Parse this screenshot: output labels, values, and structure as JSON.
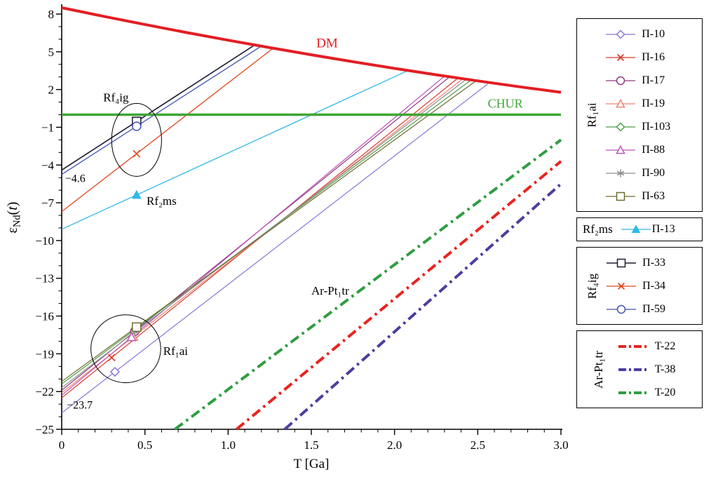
{
  "chart_data": {
    "type": "line",
    "xlabel": "T [Ga]",
    "ylabel": "εNd(t)",
    "ylabel_parts": [
      {
        "t": "ε"
      },
      {
        "t": "Nd",
        "sub": true
      },
      {
        "t": "("
      },
      {
        "t": "t",
        "italic": true
      },
      {
        "t": ")"
      }
    ],
    "xlim": [
      0,
      3.0
    ],
    "ylim": [
      -25,
      8
    ],
    "x_ticks": {
      "values": [
        0,
        0.5,
        1.0,
        1.5,
        2.0,
        2.5,
        3.0
      ],
      "labels": [
        "0",
        "0.5",
        "1.0",
        "1.5",
        "2.0",
        "2.5",
        "3.0"
      ],
      "minor_step": 0.1
    },
    "y_ticks": {
      "values": [
        8,
        5,
        2,
        -1,
        -4,
        -7,
        -10,
        -13,
        -16,
        -19,
        -22,
        -25
      ],
      "labels": [
        "8",
        "5",
        "2",
        "−1",
        "−4",
        "−7",
        "−10",
        "−13",
        "−16",
        "−19",
        "−22",
        "−25"
      ],
      "minor_step": 1
    },
    "reference_lines": [
      {
        "name": "DM",
        "color": "#e31e24",
        "width": 4,
        "points": [
          [
            0,
            8.5
          ],
          [
            0.25,
            7.82
          ],
          [
            0.5,
            7.17
          ],
          [
            0.75,
            6.53
          ],
          [
            1.0,
            5.92
          ],
          [
            1.25,
            5.33
          ],
          [
            1.5,
            4.76
          ],
          [
            1.75,
            4.21
          ],
          [
            2.0,
            3.68
          ],
          [
            2.25,
            3.17
          ],
          [
            2.5,
            2.69
          ],
          [
            2.75,
            2.22
          ],
          [
            3.0,
            1.78
          ]
        ]
      },
      {
        "name": "CHUR",
        "color": "#3fa535",
        "width": 3.5,
        "points": [
          [
            0,
            0
          ],
          [
            3.0,
            0
          ]
        ]
      }
    ],
    "series": [
      {
        "group": "Rf₁ai",
        "name": "П-10",
        "color": "#8577d6",
        "marker": "diamond",
        "width": 1.2,
        "points": [
          [
            0,
            -23.7
          ],
          [
            2.57,
            2.55
          ]
        ],
        "marker_at": [
          0.32,
          -20.43
        ]
      },
      {
        "group": "Rf₁ai",
        "name": "П-16",
        "color": "#d93a2b",
        "marker": "x",
        "width": 1.2,
        "points": [
          [
            0,
            -22.5
          ],
          [
            2.38,
            2.9
          ]
        ],
        "marker_at": [
          0.3,
          -19.3
        ]
      },
      {
        "group": "Rf₁ai",
        "name": "П-17",
        "color": "#8d3a80",
        "marker": "circle",
        "width": 1.2,
        "points": [
          [
            0,
            -21.9
          ],
          [
            2.33,
            3.0
          ]
        ],
        "marker_at": [
          0.44,
          -17.2
        ]
      },
      {
        "group": "Rf₁ai",
        "name": "П-19",
        "color": "#ef8373",
        "marker": "triangle",
        "width": 1.2,
        "points": [
          [
            0,
            -22.1
          ],
          [
            2.41,
            2.85
          ]
        ],
        "marker_at": [
          0.43,
          -17.65
        ]
      },
      {
        "group": "Rf₁ai",
        "name": "П-103",
        "color": "#4e9e4a",
        "marker": "diamond",
        "width": 1.2,
        "points": [
          [
            0,
            -21.4
          ],
          [
            2.46,
            2.76
          ]
        ],
        "marker_at": [
          0.45,
          -16.98
        ]
      },
      {
        "group": "Rf₁ai",
        "name": "П-88",
        "color": "#bc53bc",
        "marker": "triangle",
        "width": 1.2,
        "points": [
          [
            0,
            -22.3
          ],
          [
            2.3,
            3.06
          ]
        ],
        "marker_at": [
          0.42,
          -17.67
        ]
      },
      {
        "group": "Rf₁ai",
        "name": "П-90",
        "color": "#8c8c8c",
        "marker": "asterisk",
        "width": 1.2,
        "points": [
          [
            0,
            -21.7
          ],
          [
            2.43,
            2.8
          ]
        ],
        "marker_at": [
          0.44,
          -17.26
        ]
      },
      {
        "group": "Rf₁ai",
        "name": "П-63",
        "color": "#6f6b2f",
        "marker": "square",
        "width": 1.2,
        "points": [
          [
            0,
            -21.2
          ],
          [
            2.49,
            2.7
          ]
        ],
        "marker_at": [
          0.45,
          -16.88
        ]
      },
      {
        "group": "Rf₂ms",
        "name": "П-13",
        "color": "#30b8e8",
        "marker": "triangle-filled",
        "width": 1.3,
        "points": [
          [
            0,
            -9.1
          ],
          [
            2.08,
            3.5
          ]
        ],
        "marker_at": [
          0.45,
          -6.37
        ]
      },
      {
        "group": "Rf₄ig",
        "name": "П-33",
        "color": "#1c1c34",
        "marker": "square",
        "width": 1.6,
        "points": [
          [
            0,
            -4.4
          ],
          [
            1.16,
            5.54
          ]
        ],
        "marker_at": [
          0.45,
          -0.54
        ]
      },
      {
        "group": "Rf₄ig",
        "name": "П-34",
        "color": "#e0471e",
        "marker": "x",
        "width": 1.3,
        "points": [
          [
            0,
            -7.7
          ],
          [
            1.27,
            5.28
          ]
        ],
        "marker_at": [
          0.45,
          -3.1
        ]
      },
      {
        "group": "Rf₄ig",
        "name": "П-59",
        "color": "#4150b4",
        "marker": "circle",
        "width": 1.3,
        "points": [
          [
            0,
            -4.75
          ],
          [
            1.2,
            5.45
          ]
        ],
        "marker_at": [
          0.45,
          -0.92
        ]
      },
      {
        "group": "Ar-Pt₁tr",
        "name": "T-22",
        "color": "#e8241e",
        "marker": null,
        "dash": true,
        "width": 4,
        "points": [
          [
            1.05,
            -25
          ],
          [
            3.0,
            -3.7
          ]
        ]
      },
      {
        "group": "Ar-Pt₁tr",
        "name": "T-38",
        "color": "#4a3f9f",
        "marker": null,
        "dash": true,
        "width": 4,
        "points": [
          [
            1.34,
            -25
          ],
          [
            3.0,
            -5.5
          ]
        ]
      },
      {
        "group": "Ar-Pt₁tr",
        "name": "T-20",
        "color": "#2f9e41",
        "marker": null,
        "dash": true,
        "width": 4,
        "points": [
          [
            0.68,
            -25
          ],
          [
            3.0,
            -2.0
          ]
        ]
      }
    ],
    "annotations": [
      {
        "text": "DM",
        "x": 1.53,
        "y": 5.35,
        "color": "#e31e24",
        "size": 19
      },
      {
        "text": "CHUR",
        "x": 2.56,
        "y": 0.55,
        "color": "#3fa535",
        "size": 18
      },
      {
        "text": "Rf₄ig",
        "x": 0.25,
        "y": 1.05,
        "color": "#000000",
        "size": 17
      },
      {
        "text": "−4.6",
        "x": 0.02,
        "y": -5.35,
        "color": "#000000",
        "size": 16
      },
      {
        "text": "Rf₂ms",
        "x": 0.51,
        "y": -7.15,
        "color": "#000000",
        "size": 17
      },
      {
        "text": "Ar-Pt₁tr",
        "x": 1.5,
        "y": -14.3,
        "color": "#000000",
        "size": 17
      },
      {
        "text": "Rf₁ai",
        "x": 0.61,
        "y": -19.1,
        "color": "#000000",
        "size": 17
      },
      {
        "text": "−23.7",
        "x": 0.03,
        "y": -23.35,
        "color": "#000000",
        "size": 16
      }
    ],
    "ellipse_annotations": [
      {
        "cx": 0.45,
        "cy": -2.0,
        "rx": 0.15,
        "ry": 2.9
      },
      {
        "cx": 0.385,
        "cy": -18.6,
        "rx": 0.21,
        "ry": 2.7
      }
    ]
  },
  "legend": {
    "groups": [
      {
        "label": "Rf₁ai",
        "orientation": "vertical",
        "series": [
          0,
          1,
          2,
          3,
          4,
          5,
          6,
          7
        ]
      },
      {
        "label": "Rf₂ms",
        "orientation": "horizontal",
        "series": [
          8
        ]
      },
      {
        "label": "Rf₄ig",
        "orientation": "vertical",
        "series": [
          9,
          10,
          11
        ]
      },
      {
        "label": "Ar-Pt₁tr",
        "orientation": "vertical",
        "series": [
          12,
          13,
          14
        ]
      }
    ]
  }
}
